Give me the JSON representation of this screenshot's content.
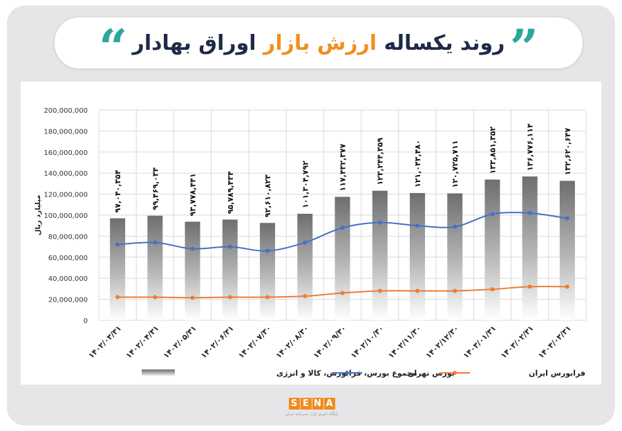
{
  "header": {
    "title_main": "روند یکساله",
    "title_highlight": "ارزش بازار",
    "title_end": "اوراق بهادار"
  },
  "logo": {
    "letters": [
      "S",
      "E",
      "N",
      "A"
    ],
    "subtitle": "پایگاه خبری بازار سرمایه ایران"
  },
  "colors": {
    "accent_orange": "#f0901e",
    "accent_teal": "#2aa79b",
    "title_dark": "#1e2a47",
    "tehran_line": "#4472c4",
    "farabourse_line": "#ed7d31",
    "total_bar": "#8c8c8c",
    "background": "#e6e6e8"
  },
  "chart_data": {
    "type": "bar",
    "ylabel": "میلیارد ریال",
    "ylim": [
      0,
      200000000
    ],
    "y_ticks": [
      "0",
      "20,000,000",
      "40,000,000",
      "60,000,000",
      "80,000,000",
      "100,000,000",
      "120,000,000",
      "140,000,000",
      "160,000,000",
      "180,000,000",
      "200,000,000"
    ],
    "y_tick_values": [
      0,
      20000000,
      40000000,
      60000000,
      80000000,
      100000000,
      120000000,
      140000000,
      160000000,
      180000000,
      200000000
    ],
    "grid": true,
    "categories": [
      "۱۴۰۲/۰۳/۳۱",
      "۱۴۰۲/۰۴/۳۱",
      "۱۴۰۲/۰۵/۳۱",
      "۱۴۰۲/۰۶/۳۱",
      "۱۴۰۲/۰۷/۳۰",
      "۱۴۰۲/۰۸/۳۰",
      "۱۴۰۲/۰۹/۳۰",
      "۱۴۰۲/۱۰/۳۰",
      "۱۴۰۲/۱۱/۳۰",
      "۱۴۰۲/۱۲/۳۰",
      "۱۴۰۳/۰۱/۳۱",
      "۱۴۰۳/۰۲/۳۱",
      "۱۴۰۳/۰۳/۳۱"
    ],
    "series": [
      {
        "name": "مجموع بورس، فرابورس، کالا و انرژی",
        "type": "bar",
        "values": [
          97040354,
          99469034,
          93778441,
          95789434,
          92610823,
          101304792,
          117432377,
          123244359,
          121043480,
          120725711,
          133851352,
          136776114,
          132620647
        ],
        "labels": [
          "۹۷,۰۴۰,۳۵۴",
          "۹۹,۴۶۹,۰۳۴",
          "۹۳,۷۷۸,۴۴۱",
          "۹۵,۷۸۹,۴۳۴",
          "۹۲,۶۱۰,۸۲۳",
          "۱۰۱,۳۰۴,۷۹۲",
          "۱۱۷,۴۳۲,۳۷۷",
          "۱۲۳,۲۴۴,۳۵۹",
          "۱۲۱,۰۴۳,۴۸۰",
          "۱۲۰,۷۲۵,۷۱۱",
          "۱۳۳,۸۵۱,۳۵۲",
          "۱۳۶,۷۷۶,۱۱۴",
          "۱۳۲,۶۲۰,۶۴۷"
        ]
      },
      {
        "name": "بورس تهران",
        "type": "line",
        "values": [
          72000000,
          74000000,
          68000000,
          70000000,
          66000000,
          74000000,
          88000000,
          93000000,
          90000000,
          89000000,
          101000000,
          102000000,
          97000000
        ]
      },
      {
        "name": "فرابورس ایران",
        "type": "line",
        "values": [
          22000000,
          22000000,
          21500000,
          22000000,
          22000000,
          23000000,
          26000000,
          28000000,
          28000000,
          28000000,
          29500000,
          32000000,
          32000000
        ]
      }
    ],
    "legend_position": "bottom"
  }
}
